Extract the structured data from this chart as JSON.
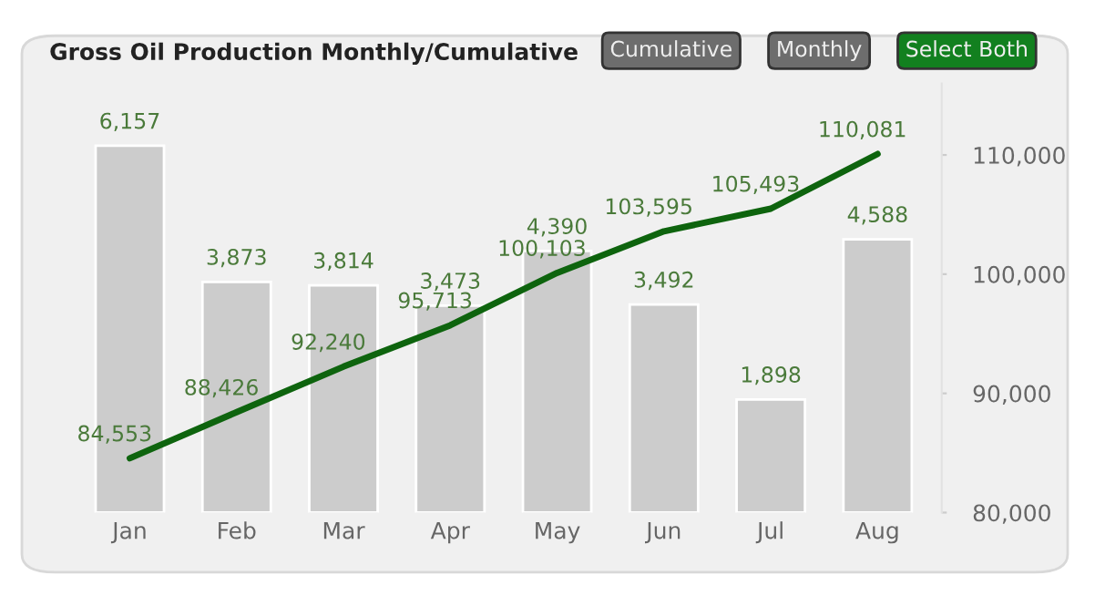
{
  "chart_data": {
    "type": "bar",
    "title": "Gross Oil Production Monthly/Cumulative",
    "annotations": [
      "Cumulative",
      "Monthly",
      "Select Both"
    ],
    "categories": [
      "Jan",
      "Feb",
      "Mar",
      "Apr",
      "May",
      "Jun",
      "Jul",
      "Aug"
    ],
    "series": [
      {
        "color": "#cccccc",
        "values": [
          6157,
          3873,
          3814,
          3473,
          4390,
          3492,
          1898,
          4588
        ],
        "value_labels": [
          "6,157",
          "3,873",
          "3,814",
          "3,473",
          "4,390",
          "3,492",
          "1,898",
          "4,588"
        ]
      },
      {
        "type": "line",
        "axis": "y2",
        "color": "#0e640e",
        "values": [
          84553,
          88426,
          92240,
          95713,
          100103,
          103595,
          105493,
          110081
        ],
        "value_labels": [
          "84,553",
          "88,426",
          "92,240",
          "95,713",
          "100,103",
          "103,595",
          "105,493",
          "110,081"
        ]
      }
    ],
    "y2lim": [
      80000,
      116000
    ],
    "y2ticks": [
      {
        "value": 80000,
        "label": "80,000"
      },
      {
        "value": 90000,
        "label": "90,000"
      },
      {
        "value": 100000,
        "label": "100,000"
      },
      {
        "value": 110000,
        "label": "110,000"
      }
    ],
    "grid": false
  }
}
